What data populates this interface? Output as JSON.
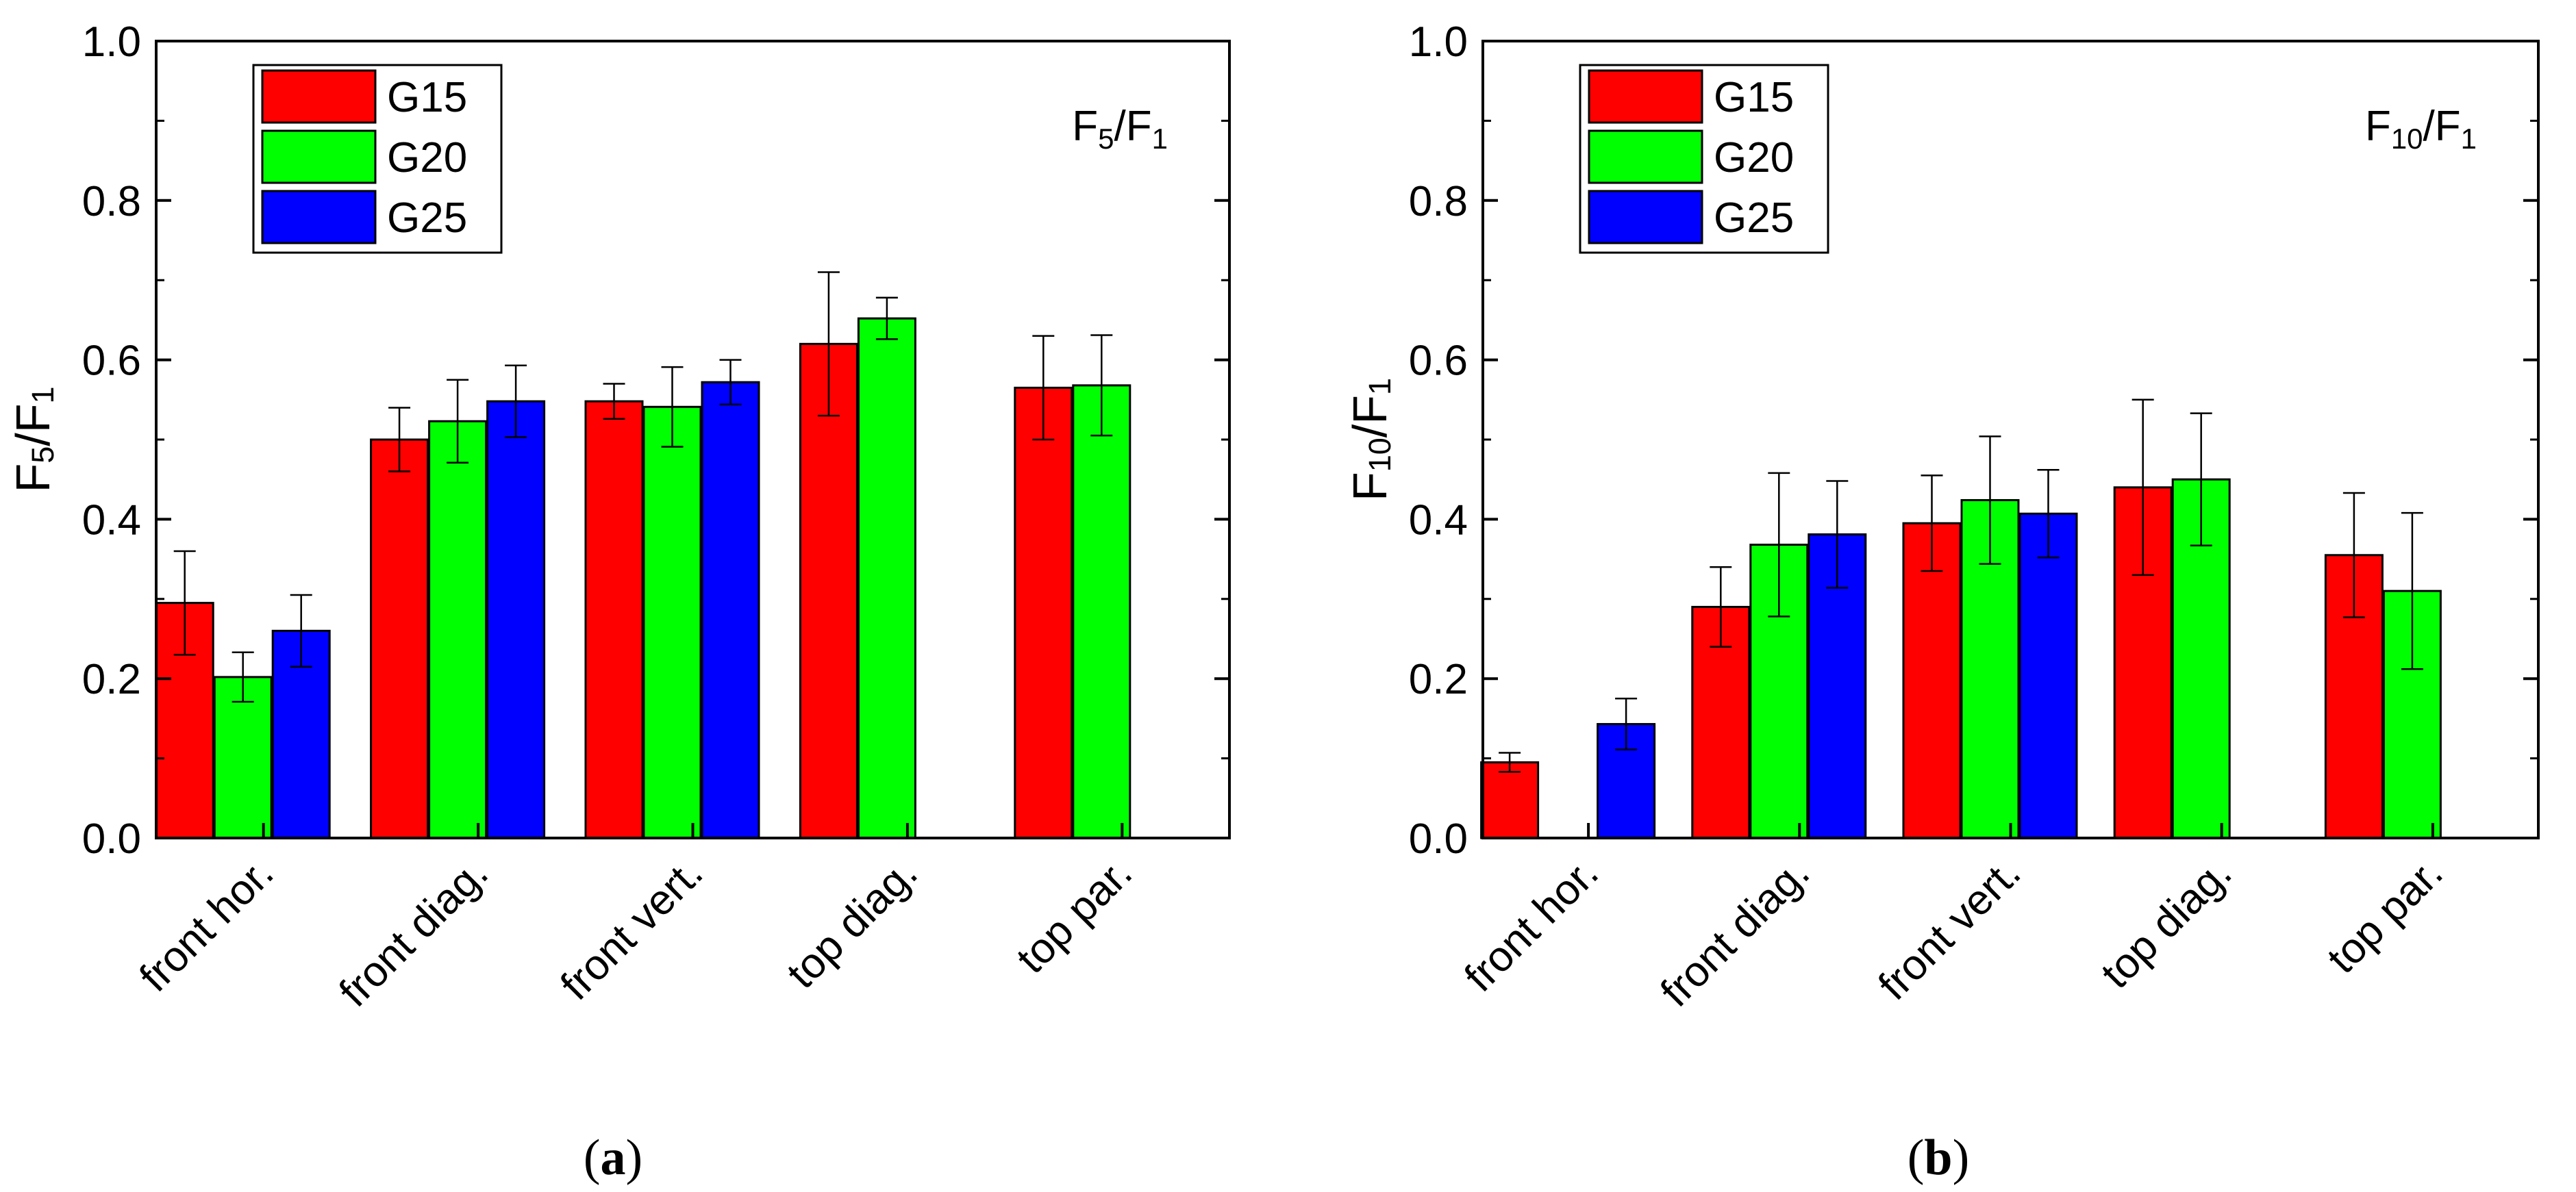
{
  "chart_data": [
    {
      "type": "bar",
      "panel_label": "a",
      "ylabel": {
        "main": "F",
        "sub1": "5",
        "mid": "/F",
        "sub2": "1"
      },
      "annotation": {
        "main": "F",
        "sub1": "5",
        "mid": "/F",
        "sub2": "1"
      },
      "categories": [
        "front hor.",
        "front diag.",
        "front vert.",
        "top diag.",
        "top par."
      ],
      "ylim": [
        0,
        1.0
      ],
      "yticks": [
        "0.0",
        "0.2",
        "0.4",
        "0.6",
        "0.8",
        "1.0"
      ],
      "legend_position": "top-left",
      "series": [
        {
          "name": "G15",
          "color": "#ff0000",
          "values": [
            0.295,
            0.5,
            0.548,
            0.62,
            0.565
          ],
          "errors": [
            0.065,
            0.04,
            0.022,
            0.09,
            0.065
          ]
        },
        {
          "name": "G20",
          "color": "#00ff00",
          "values": [
            0.202,
            0.523,
            0.541,
            0.652,
            0.568
          ],
          "errors": [
            0.031,
            0.052,
            0.05,
            0.026,
            0.063
          ]
        },
        {
          "name": "G25",
          "color": "#0000ff",
          "values": [
            0.26,
            0.548,
            0.572,
            null,
            null
          ],
          "errors": [
            0.045,
            0.045,
            0.028,
            null,
            null
          ]
        }
      ]
    },
    {
      "type": "bar",
      "panel_label": "b",
      "ylabel": {
        "main": "F",
        "sub1": "10",
        "mid": "/F",
        "sub2": "1"
      },
      "annotation": {
        "main": "F",
        "sub1": "10",
        "mid": "/F",
        "sub2": "1"
      },
      "categories": [
        "front hor.",
        "front diag.",
        "front vert.",
        "top diag.",
        "top par."
      ],
      "ylim": [
        0,
        1.0
      ],
      "yticks": [
        "0.0",
        "0.2",
        "0.4",
        "0.6",
        "0.8",
        "1.0"
      ],
      "legend_position": "top-left",
      "series": [
        {
          "name": "G15",
          "color": "#ff0000",
          "values": [
            0.095,
            0.29,
            0.395,
            0.44,
            0.355
          ],
          "errors": [
            0.012,
            0.05,
            0.06,
            0.11,
            0.078
          ]
        },
        {
          "name": "G20",
          "color": "#00ff00",
          "values": [
            null,
            0.368,
            0.424,
            0.45,
            0.31
          ],
          "errors": [
            null,
            0.09,
            0.08,
            0.083,
            0.098
          ]
        },
        {
          "name": "G25",
          "color": "#0000ff",
          "values": [
            0.143,
            0.381,
            0.407,
            null,
            null
          ],
          "errors": [
            0.032,
            0.067,
            0.055,
            null,
            null
          ]
        }
      ]
    }
  ]
}
